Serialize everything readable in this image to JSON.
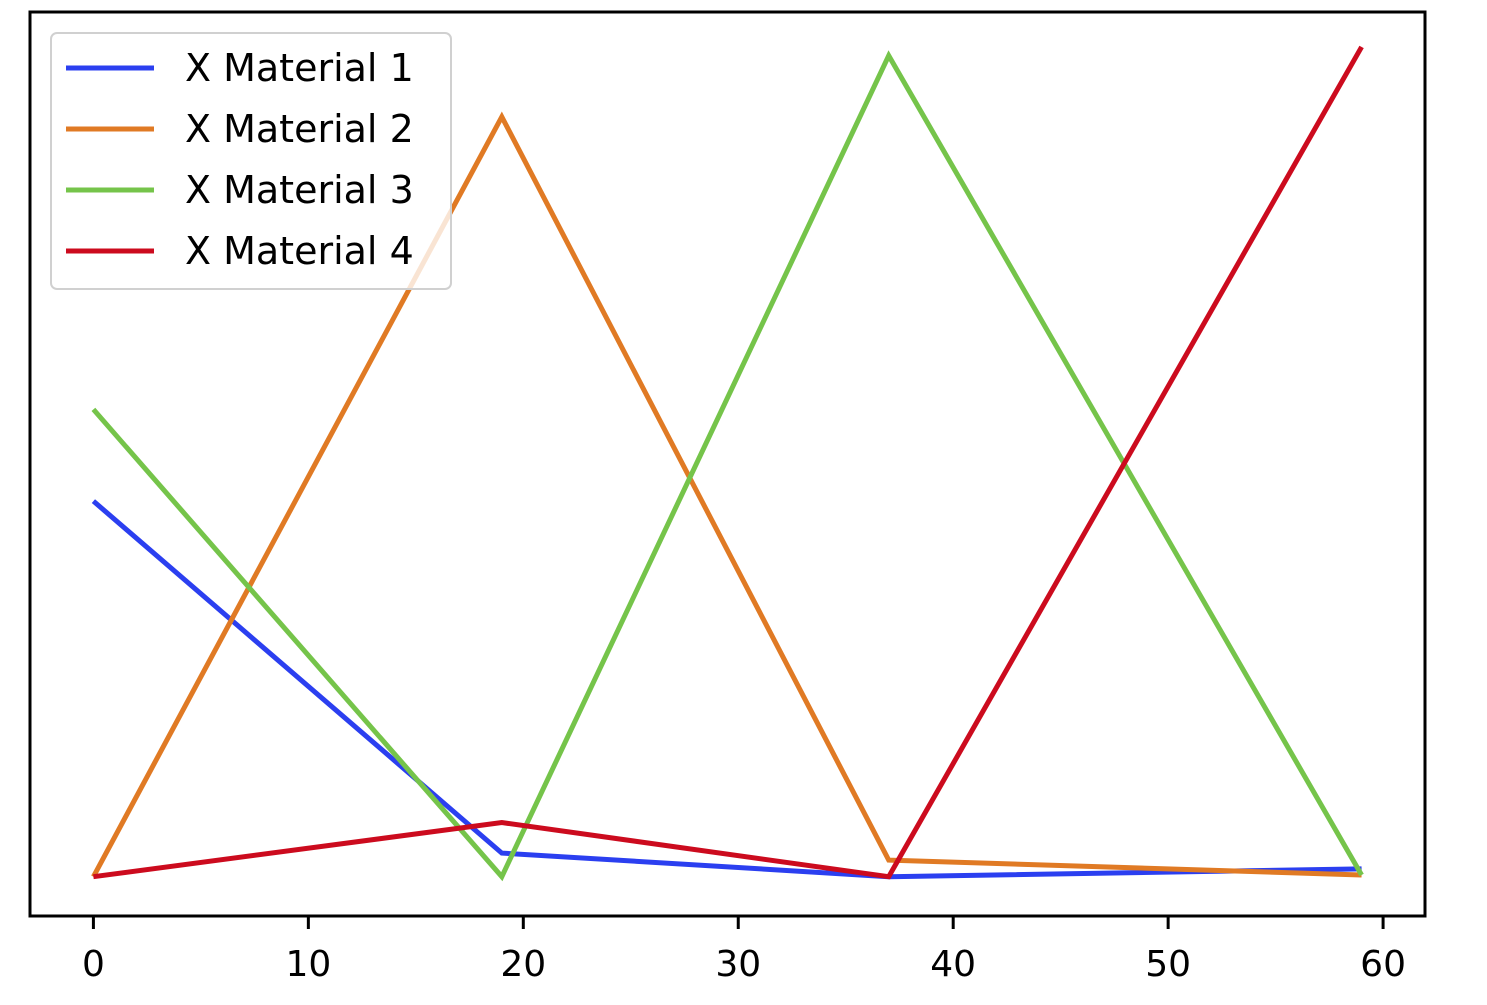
{
  "chart_data": {
    "type": "line",
    "title": "",
    "xlabel": "",
    "ylabel": "",
    "xlim": [
      -2.95,
      61.95
    ],
    "ylim": [
      -0.045,
      0.99
    ],
    "xticks": [
      0,
      10,
      20,
      30,
      40,
      50,
      60
    ],
    "yticks_visible": false,
    "grid": false,
    "legend_position": "top-left",
    "x": [
      0,
      19,
      37,
      59
    ],
    "series": [
      {
        "name": "X Material 1",
        "color": "#2b3ff0",
        "values": [
          0.43,
          0.027,
          0.0,
          0.009
        ]
      },
      {
        "name": "X Material 2",
        "color": "#e07a24",
        "values": [
          0.0,
          0.87,
          0.019,
          0.002
        ]
      },
      {
        "name": "X Material 3",
        "color": "#75c44a",
        "values": [
          0.535,
          0.0,
          0.94,
          0.002
        ]
      },
      {
        "name": "X Material 4",
        "color": "#cc0b1e",
        "values": [
          0.0,
          0.062,
          0.0,
          0.95
        ]
      }
    ]
  }
}
